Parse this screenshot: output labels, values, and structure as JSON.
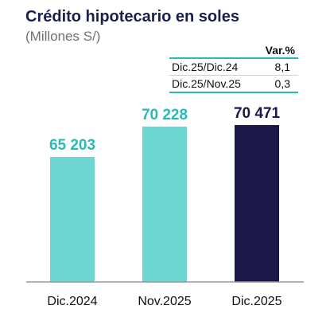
{
  "header": {
    "title": "Crédito hipotecario en soles",
    "subtitle": "(Millones S/)"
  },
  "variation_table": {
    "column_header": "Var.%",
    "rows": [
      {
        "label": "Dic.25/Dic.24",
        "value": "8,1"
      },
      {
        "label": "Dic.25/Nov.25",
        "value": "0,3"
      }
    ]
  },
  "chart_data": {
    "type": "bar",
    "title": "Crédito hipotecario en soles",
    "ylabel": "",
    "xlabel": "",
    "categories": [
      "Dic.2024",
      "Nov.2025",
      "Dic.2025"
    ],
    "values": [
      65203,
      70228,
      70471
    ],
    "value_labels": [
      "65 203",
      "70 228",
      "70 471"
    ],
    "bar_colors": [
      "#6dd6d2",
      "#6dd6d2",
      "#1b1747"
    ],
    "label_colors": [
      "#2ab9b9",
      "#2ab9b9",
      "#1b1747"
    ],
    "grid": false,
    "legend": "none"
  }
}
